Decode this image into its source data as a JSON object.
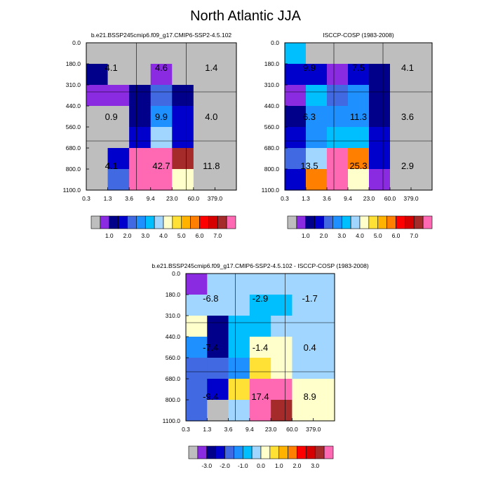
{
  "figure_title": "North Atlantic JJA",
  "colors": {
    "missing": "#bebebe",
    "abs_levels": [
      "#bebebe",
      "#8a2be2",
      "#00008b",
      "#0000cd",
      "#4169e1",
      "#1e90ff",
      "#00bfff",
      "#a0d6ff",
      "#ffffcc",
      "#ffe135",
      "#ffb300",
      "#ff7f00",
      "#ff0000",
      "#d70000",
      "#a52a2a",
      "#ff69b4"
    ],
    "diff_levels": [
      "#bebebe",
      "#8a2be2",
      "#00008b",
      "#0000cd",
      "#4169e1",
      "#1e90ff",
      "#00bfff",
      "#a0d6ff",
      "#ffffcc",
      "#ffe135",
      "#ffb300",
      "#ff7f00",
      "#ff0000",
      "#d70000",
      "#a52a2a",
      "#ff69b4"
    ]
  },
  "legend_abs": {
    "labels": [
      "1.0",
      "2.0",
      "3.0",
      "4.0",
      "5.0",
      "6.0",
      "7.0"
    ]
  },
  "legend_diff": {
    "labels": [
      "-3.0",
      "-2.0",
      "-1.0",
      "0.0",
      "1.0",
      "2.0",
      "3.0"
    ]
  },
  "chart_data": [
    {
      "type": "heatmap",
      "title": "b.e21.BSSP245cmip6.f09_g17.CMIP6-SSP2-4.5.102",
      "xlabel": "",
      "ylabel": "",
      "x_ticks": [
        "0.3",
        "1.3",
        "3.6",
        "9.4",
        "23.0",
        "60.0",
        "379.0"
      ],
      "y_ticks": [
        "0.0",
        "180.0",
        "310.0",
        "440.0",
        "560.0",
        "680.0",
        "800.0",
        "1100.0"
      ],
      "cells": [
        [
          "#bebebe",
          "#bebebe",
          "#bebebe",
          "#bebebe",
          "#bebebe",
          "#bebebe",
          "#bebebe"
        ],
        [
          "#00008b",
          "#bebebe",
          "#bebebe",
          "#8a2be2",
          "#bebebe",
          "#bebebe",
          "#bebebe"
        ],
        [
          "#8a2be2",
          "#8a2be2",
          "#00008b",
          "#4169e1",
          "#00008b",
          "#bebebe",
          "#bebebe"
        ],
        [
          "#bebebe",
          "#bebebe",
          "#00008b",
          "#1e90ff",
          "#0000cd",
          "#bebebe",
          "#bebebe"
        ],
        [
          "#bebebe",
          "#bebebe",
          "#0000cd",
          "#a0d6ff",
          "#0000cd",
          "#bebebe",
          "#bebebe"
        ],
        [
          "#bebebe",
          "#0000cd",
          "#ff69b4",
          "#ff69b4",
          "#a52a2a",
          "#bebebe",
          "#bebebe"
        ],
        [
          "#bebebe",
          "#4169e1",
          "#ff69b4",
          "#ff69b4",
          "#ffffcc",
          "#bebebe",
          "#bebebe"
        ]
      ],
      "box_values": [
        [
          "4.1",
          "4.6",
          "1.4"
        ],
        [
          "0.9",
          "9.9",
          "4.0"
        ],
        [
          "4.1",
          "42.7",
          "11.8"
        ]
      ]
    },
    {
      "type": "heatmap",
      "title": "ISCCP-COSP (1983-2008)",
      "xlabel": "",
      "ylabel": "",
      "x_ticks": [
        "0.3",
        "1.3",
        "3.6",
        "9.4",
        "23.0",
        "60.0",
        "379.0"
      ],
      "y_ticks": [
        "0.0",
        "180.0",
        "310.0",
        "440.0",
        "560.0",
        "680.0",
        "800.0",
        "1100.0"
      ],
      "cells": [
        [
          "#00bfff",
          "#bebebe",
          "#bebebe",
          "#bebebe",
          "#bebebe",
          "#bebebe",
          "#bebebe"
        ],
        [
          "#0000cd",
          "#0000cd",
          "#8a2be2",
          "#0000cd",
          "#00008b",
          "#bebebe",
          "#bebebe"
        ],
        [
          "#8a2be2",
          "#00bfff",
          "#4169e1",
          "#1e90ff",
          "#00008b",
          "#bebebe",
          "#bebebe"
        ],
        [
          "#00008b",
          "#1e90ff",
          "#1e90ff",
          "#1e90ff",
          "#00008b",
          "#bebebe",
          "#bebebe"
        ],
        [
          "#0000cd",
          "#1e90ff",
          "#00bfff",
          "#00bfff",
          "#0000cd",
          "#bebebe",
          "#bebebe"
        ],
        [
          "#4169e1",
          "#a0d6ff",
          "#ff69b4",
          "#ff7f00",
          "#0000cd",
          "#bebebe",
          "#bebebe"
        ],
        [
          "#0000cd",
          "#ff7f00",
          "#ff69b4",
          "#ffffcc",
          "#8a2be2",
          "#bebebe",
          "#bebebe"
        ]
      ],
      "box_values": [
        [
          "9.9",
          "7.5",
          "4.1"
        ],
        [
          "6.3",
          "11.3",
          "3.6"
        ],
        [
          "13.5",
          "25.3",
          "2.9"
        ]
      ]
    },
    {
      "type": "heatmap",
      "title": "b.e21.BSSP245cmip6.f09_g17.CMIP6-SSP2-4.5.102 - ISCCP-COSP (1983-2008)",
      "xlabel": "",
      "ylabel": "",
      "x_ticks": [
        "0.3",
        "1.3",
        "3.6",
        "9.4",
        "23.0",
        "60.0",
        "379.0"
      ],
      "y_ticks": [
        "0.0",
        "180.0",
        "310.0",
        "440.0",
        "560.0",
        "680.0",
        "800.0",
        "1100.0"
      ],
      "cells": [
        [
          "#8a2be2",
          "#a0d6ff",
          "#a0d6ff",
          "#a0d6ff",
          "#a0d6ff",
          "#a0d6ff",
          "#a0d6ff"
        ],
        [
          "#a0d6ff",
          "#a0d6ff",
          "#a0d6ff",
          "#00bfff",
          "#00bfff",
          "#a0d6ff",
          "#a0d6ff"
        ],
        [
          "#ffffcc",
          "#00008b",
          "#00bfff",
          "#00bfff",
          "#a0d6ff",
          "#a0d6ff",
          "#a0d6ff"
        ],
        [
          "#1e90ff",
          "#00008b",
          "#00bfff",
          "#ffffcc",
          "#ffffcc",
          "#a0d6ff",
          "#a0d6ff"
        ],
        [
          "#4169e1",
          "#4169e1",
          "#1e90ff",
          "#ffe135",
          "#ffffcc",
          "#a0d6ff",
          "#a0d6ff"
        ],
        [
          "#4169e1",
          "#0000cd",
          "#ffe135",
          "#ff69b4",
          "#ff69b4",
          "#ffffcc",
          "#ffffcc"
        ],
        [
          "#4169e1",
          "#bebebe",
          "#a0d6ff",
          "#ff69b4",
          "#a52a2a",
          "#ffffcc",
          "#ffffcc"
        ]
      ],
      "box_values": [
        [
          "-6.8",
          "-2.9",
          "-1.7"
        ],
        [
          "-7.4",
          "-1.4",
          "0.4"
        ],
        [
          "-9.4",
          "17.4",
          "8.9"
        ]
      ]
    }
  ]
}
